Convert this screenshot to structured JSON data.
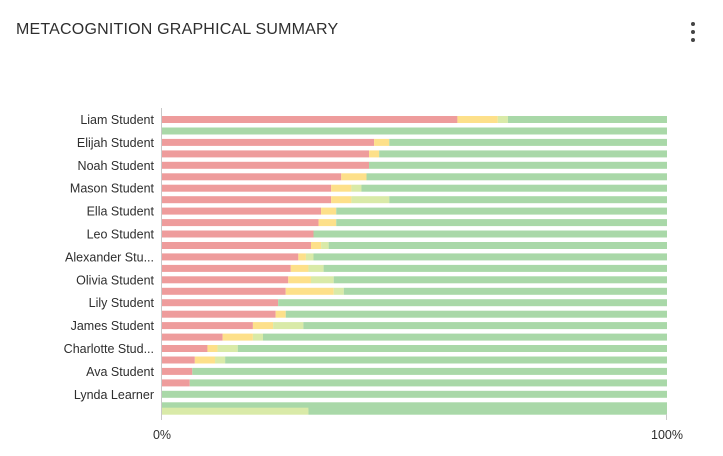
{
  "header": {
    "title": "METACOGNITION GRAPHICAL SUMMARY",
    "menu_icon": "kebab-menu-icon"
  },
  "colors": {
    "red": "#ee9c9c",
    "yellow": "#fde08a",
    "lightgreen": "#d9eaa8",
    "green": "#a9d8a8",
    "axis": "#c8c8c8"
  },
  "chart_data": {
    "type": "bar",
    "orientation": "horizontal",
    "stacked": true,
    "stack_mode": "percent",
    "categories": [
      "Liam Student",
      "Elijah Student",
      "Noah Student",
      "Mason Student",
      "Ella Student",
      "Leo Student",
      "Alexander Stu...",
      "Olivia Student",
      "Lily Student",
      "James Student",
      "Charlotte Stud...",
      "Ava Student",
      "Lynda Learner"
    ],
    "xlim": [
      0,
      100
    ],
    "xticks": [
      "0%",
      "100%"
    ],
    "series_colors": [
      "red",
      "yellow",
      "lightgreen",
      "green"
    ],
    "rows": [
      [
        [
          58.5,
          8,
          2,
          31.5
        ],
        [
          0,
          0,
          0,
          100
        ]
      ],
      [
        [
          42,
          3,
          0,
          55
        ],
        [
          41,
          2,
          0,
          57
        ]
      ],
      [
        [
          41,
          0,
          0,
          59
        ],
        [
          35.5,
          5,
          0,
          59.5
        ]
      ],
      [
        [
          33.5,
          4,
          2,
          60.5
        ],
        [
          33.5,
          4,
          7.5,
          55
        ]
      ],
      [
        [
          31.5,
          3,
          0,
          65.5
        ],
        [
          31,
          3.5,
          0,
          65.5
        ]
      ],
      [
        [
          30,
          0,
          0,
          70
        ],
        [
          29.5,
          2,
          1.5,
          67
        ]
      ],
      [
        [
          27,
          1.5,
          1.5,
          70
        ],
        [
          25.5,
          3.5,
          3,
          68
        ]
      ],
      [
        [
          25,
          4.5,
          4.5,
          66
        ],
        [
          24.5,
          9.5,
          2,
          64
        ]
      ],
      [
        [
          23,
          0,
          0,
          77
        ],
        [
          22.5,
          2,
          0,
          75.5
        ]
      ],
      [
        [
          18,
          4,
          6,
          72
        ],
        [
          12,
          6,
          2,
          80
        ]
      ],
      [
        [
          9,
          2,
          4,
          85
        ],
        [
          6.5,
          4,
          2,
          87.5
        ]
      ],
      [
        [
          6,
          0,
          0,
          94
        ],
        [
          5.5,
          0,
          0,
          94.5
        ]
      ],
      [
        [
          0,
          0,
          0,
          100
        ],
        [
          0,
          0,
          0,
          100
        ]
      ]
    ],
    "extra_row": [
      0,
      0,
      29,
      71
    ]
  }
}
